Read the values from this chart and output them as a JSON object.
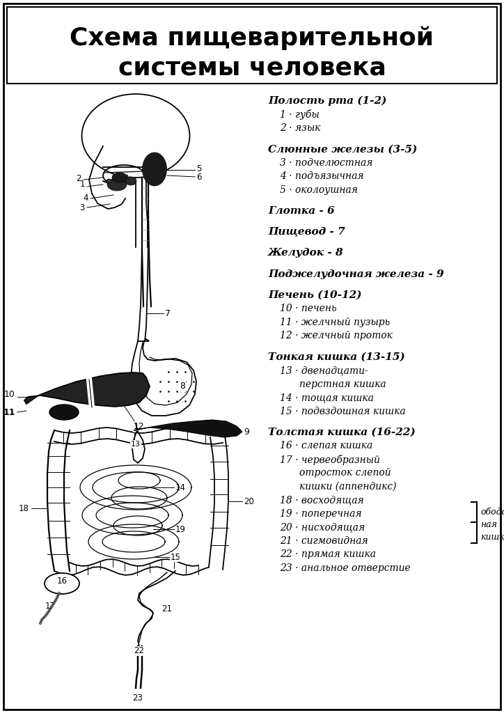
{
  "title_line1": "Схема пищеварительной",
  "title_line2": "системы человека",
  "background_color": "#ffffff",
  "legend_items": [
    {
      "text": "Полость рта (1-2)",
      "bold": true,
      "indent": 0
    },
    {
      "text": "1 · губы",
      "bold": false,
      "indent": 1
    },
    {
      "text": "2 · язык",
      "bold": false,
      "indent": 1
    },
    {
      "text": "",
      "bold": false,
      "indent": 0
    },
    {
      "text": "Слюнные железы (3-5)",
      "bold": true,
      "indent": 0
    },
    {
      "text": "3 · подчелюстная",
      "bold": false,
      "indent": 1
    },
    {
      "text": "4 · подъязычная",
      "bold": false,
      "indent": 1
    },
    {
      "text": "5 · околоушная",
      "bold": false,
      "indent": 1
    },
    {
      "text": "",
      "bold": false,
      "indent": 0
    },
    {
      "text": "Глотка - 6",
      "bold": true,
      "indent": 0
    },
    {
      "text": "",
      "bold": false,
      "indent": 0
    },
    {
      "text": "Пищевод - 7",
      "bold": true,
      "indent": 0
    },
    {
      "text": "",
      "bold": false,
      "indent": 0
    },
    {
      "text": "Желудок - 8",
      "bold": true,
      "indent": 0
    },
    {
      "text": "",
      "bold": false,
      "indent": 0
    },
    {
      "text": "Поджелудочная железа - 9",
      "bold": true,
      "indent": 0
    },
    {
      "text": "",
      "bold": false,
      "indent": 0
    },
    {
      "text": "Печень (10-12)",
      "bold": true,
      "indent": 0
    },
    {
      "text": "10 · печень",
      "bold": false,
      "indent": 1
    },
    {
      "text": "11 · желчный пузырь",
      "bold": false,
      "indent": 1
    },
    {
      "text": "12 · желчный проток",
      "bold": false,
      "indent": 1
    },
    {
      "text": "",
      "bold": false,
      "indent": 0
    },
    {
      "text": "Тонкая кишка (13-15)",
      "bold": true,
      "indent": 0
    },
    {
      "text": "13 · двенадцати-",
      "bold": false,
      "indent": 1
    },
    {
      "text": "перстная кишка",
      "bold": false,
      "indent": 2
    },
    {
      "text": "14 · тощая кишка",
      "bold": false,
      "indent": 1
    },
    {
      "text": "15 · подвздошная кишка",
      "bold": false,
      "indent": 1
    },
    {
      "text": "",
      "bold": false,
      "indent": 0
    },
    {
      "text": "Толстая кишка (16-22)",
      "bold": true,
      "indent": 0
    },
    {
      "text": "16 · слепая кишка",
      "bold": false,
      "indent": 1
    },
    {
      "text": "17 · червеобразный",
      "bold": false,
      "indent": 1
    },
    {
      "text": "отросток слепой",
      "bold": false,
      "indent": 2
    },
    {
      "text": "кишки (аппендикс)",
      "bold": false,
      "indent": 2
    },
    {
      "text": "18 · восходящая",
      "bold": false,
      "indent": 1
    },
    {
      "text": "19 · поперечная",
      "bold": false,
      "indent": 1
    },
    {
      "text": "20 · нисходящая",
      "bold": false,
      "indent": 1
    },
    {
      "text": "21 · сигмовидная",
      "bold": false,
      "indent": 1
    },
    {
      "text": "22 · прямая кишка",
      "bold": false,
      "indent": 1
    },
    {
      "text": "23 · анальное отверстие",
      "bold": false,
      "indent": 1
    }
  ]
}
